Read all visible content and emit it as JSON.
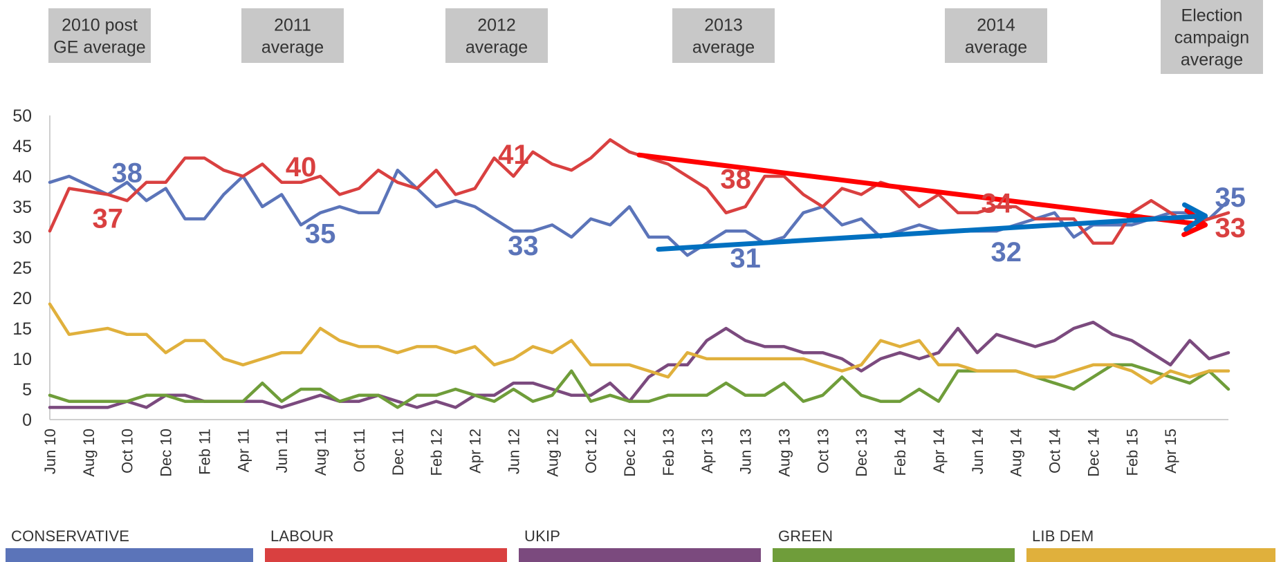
{
  "period_labels": [
    {
      "lines": [
        "2010 post",
        "GE average"
      ]
    },
    {
      "lines": [
        "2011",
        "average"
      ]
    },
    {
      "lines": [
        "2012",
        "average"
      ]
    },
    {
      "lines": [
        "2013",
        "average"
      ]
    },
    {
      "lines": [
        "2014",
        "average"
      ]
    },
    {
      "lines": [
        "Election",
        "campaign",
        "average"
      ]
    }
  ],
  "legend": [
    {
      "label": "CONSERVATIVE",
      "color": "#5b74b9"
    },
    {
      "label": "LABOUR",
      "color": "#d94040"
    },
    {
      "label": "UKIP",
      "color": "#7b4a7e"
    },
    {
      "label": "GREEN",
      "color": "#6f9d3a"
    },
    {
      "label": "LIB DEM",
      "color": "#e0b03c"
    }
  ],
  "chart_data": {
    "type": "line",
    "ylim": [
      0,
      50
    ],
    "yticks": [
      0,
      5,
      10,
      15,
      20,
      25,
      30,
      35,
      40,
      45,
      50
    ],
    "x_tick_labels": [
      "Jun 10",
      "Aug 10",
      "Oct 10",
      "Dec 10",
      "Feb 11",
      "Apr 11",
      "Jun 11",
      "Aug 11",
      "Oct 11",
      "Dec 11",
      "Feb 12",
      "Apr 12",
      "Jun 12",
      "Aug 12",
      "Oct 12",
      "Dec 12",
      "Feb 13",
      "Apr 13",
      "Jun 13",
      "Aug 13",
      "Oct 13",
      "Dec 13",
      "Feb 14",
      "Apr 14",
      "Jun 14",
      "Aug 14",
      "Oct 14",
      "Dec 14",
      "Feb 15",
      "Apr 15"
    ],
    "series": [
      {
        "name": "CONSERVATIVE",
        "color": "#5b74b9",
        "values": [
          39,
          40,
          38.5,
          37,
          39,
          36,
          38,
          33,
          33,
          37,
          40,
          35,
          37,
          32,
          34,
          35,
          34,
          34,
          41,
          38,
          35,
          36,
          35,
          33,
          31,
          31,
          32,
          30,
          33,
          32,
          35,
          30,
          30,
          27,
          29,
          31,
          31,
          29,
          30,
          34,
          35,
          32,
          33,
          30,
          31,
          32,
          31,
          31,
          31,
          31,
          32,
          33,
          34,
          30,
          32,
          32,
          32,
          33,
          34,
          34,
          33,
          36
        ]
      },
      {
        "name": "LABOUR",
        "color": "#d94040",
        "values": [
          31,
          38,
          37.5,
          37,
          36,
          39,
          39,
          43,
          43,
          41,
          40,
          42,
          39,
          39,
          40,
          37,
          38,
          41,
          39,
          38,
          41,
          37,
          38,
          43,
          40,
          44,
          42,
          41,
          43,
          46,
          44,
          43,
          42,
          40,
          38,
          34,
          35,
          40,
          40,
          37,
          35,
          38,
          37,
          39,
          38,
          35,
          37,
          34,
          34,
          35,
          35,
          33,
          33,
          33,
          29,
          29,
          34,
          36,
          34,
          32,
          33,
          34
        ]
      },
      {
        "name": "UKIP",
        "color": "#7b4a7e",
        "values": [
          2,
          2,
          2,
          2,
          3,
          2,
          4,
          4,
          3,
          3,
          3,
          3,
          2,
          3,
          4,
          3,
          3,
          4,
          3,
          2,
          3,
          2,
          4,
          4,
          6,
          6,
          5,
          4,
          4,
          6,
          3,
          7,
          9,
          9,
          13,
          15,
          13,
          12,
          12,
          11,
          11,
          10,
          8,
          10,
          11,
          10,
          11,
          15,
          11,
          14,
          13,
          12,
          13,
          15,
          16,
          14,
          13,
          11,
          9,
          13,
          10,
          11
        ]
      },
      {
        "name": "GREEN",
        "color": "#6f9d3a",
        "values": [
          4,
          3,
          3,
          3,
          3,
          4,
          4,
          3,
          3,
          3,
          3,
          6,
          3,
          5,
          5,
          3,
          4,
          4,
          2,
          4,
          4,
          5,
          4,
          3,
          5,
          3,
          4,
          8,
          3,
          4,
          3,
          3,
          4,
          4,
          4,
          6,
          4,
          4,
          6,
          3,
          4,
          7,
          4,
          3,
          3,
          5,
          3,
          8,
          8,
          8,
          8,
          7,
          6,
          5,
          7,
          9,
          9,
          8,
          7,
          6,
          8,
          5
        ]
      },
      {
        "name": "LIB DEM",
        "color": "#e0b03c",
        "values": [
          19,
          14,
          14.5,
          15,
          14,
          14,
          11,
          13,
          13,
          10,
          9,
          10,
          11,
          11,
          15,
          13,
          12,
          12,
          11,
          12,
          12,
          11,
          12,
          9,
          10,
          12,
          11,
          13,
          9,
          9,
          9,
          8,
          7,
          11,
          10,
          10,
          10,
          10,
          10,
          10,
          9,
          8,
          9,
          13,
          12,
          13,
          9,
          9,
          8,
          8,
          8,
          7,
          7,
          8,
          9,
          9,
          8,
          6,
          8,
          7,
          8,
          8
        ]
      }
    ],
    "trend_arrows": [
      {
        "series": "LABOUR",
        "color": "#ff0000",
        "from": [
          30.5,
          43.5
        ],
        "to": [
          59.8,
          32
        ]
      },
      {
        "series": "CONSERVATIVE",
        "color": "#0070c0",
        "from": [
          31.5,
          28
        ],
        "to": [
          59.8,
          33.5
        ]
      }
    ],
    "annotations": [
      {
        "text": "38",
        "color": "#5b74b9",
        "x": 4,
        "y": 40.5
      },
      {
        "text": "37",
        "color": "#d94040",
        "x": 3,
        "y": 33
      },
      {
        "text": "40",
        "color": "#d94040",
        "x": 13,
        "y": 41.5
      },
      {
        "text": "35",
        "color": "#5b74b9",
        "x": 14,
        "y": 30.5
      },
      {
        "text": "41",
        "color": "#d94040",
        "x": 24,
        "y": 43.5
      },
      {
        "text": "33",
        "color": "#5b74b9",
        "x": 24.5,
        "y": 28.5
      },
      {
        "text": "38",
        "color": "#d94040",
        "x": 35.5,
        "y": 39.5
      },
      {
        "text": "31",
        "color": "#5b74b9",
        "x": 36,
        "y": 26.5
      },
      {
        "text": "34",
        "color": "#d94040",
        "x": 49,
        "y": 35.5
      },
      {
        "text": "32",
        "color": "#5b74b9",
        "x": 49.5,
        "y": 27.5
      },
      {
        "text": "35",
        "color": "#5b74b9",
        "x": 61.1,
        "y": 36.5
      },
      {
        "text": "33",
        "color": "#d94040",
        "x": 61.1,
        "y": 31.5
      }
    ]
  }
}
